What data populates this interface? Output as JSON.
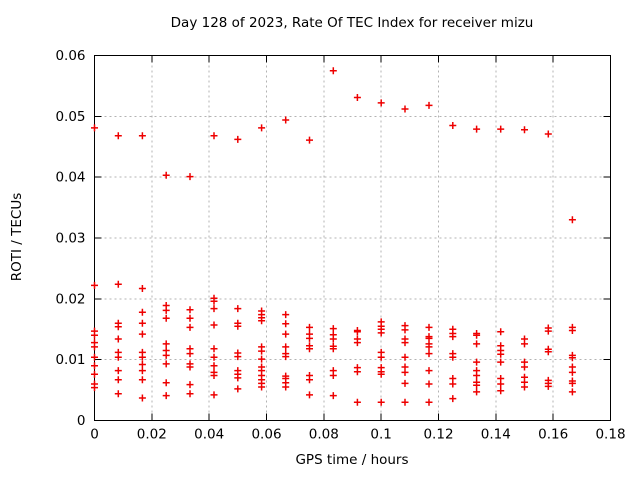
{
  "page": {
    "background": "#ffffff"
  },
  "chart_data": {
    "type": "scatter",
    "title": "Day 128 of 2023, Rate Of TEC Index for receiver mizu",
    "xlabel": "GPS time / hours",
    "ylabel": "ROTI / TECUs",
    "xlim": [
      0,
      0.18
    ],
    "ylim": [
      0,
      0.06
    ],
    "xtick_values": [
      0,
      0.02,
      0.04,
      0.06,
      0.08,
      0.1,
      0.12,
      0.14,
      0.16,
      0.18
    ],
    "xtick_labels": [
      "0",
      "0.02",
      "0.04",
      "0.06",
      "0.08",
      "0.1",
      "0.12",
      "0.14",
      "0.16",
      "0.18"
    ],
    "ytick_values": [
      0,
      0.01,
      0.02,
      0.03,
      0.04,
      0.05,
      0.06
    ],
    "ytick_labels": [
      "0",
      "0.01",
      "0.02",
      "0.03",
      "0.04",
      "0.05",
      "0.06"
    ],
    "grid": true,
    "legend": "none",
    "marker": "plus",
    "colors": {
      "marker": "#ee0000",
      "grid": "#b3b3b3",
      "axis": "#000000",
      "text": "#000000"
    },
    "series": [
      {
        "name": "ROTI",
        "points": [
          [
            0.0,
            0.0481
          ],
          [
            0.0,
            0.0222
          ],
          [
            0.0,
            0.0147
          ],
          [
            0.0,
            0.014
          ],
          [
            0.0,
            0.0128
          ],
          [
            0.0,
            0.0121
          ],
          [
            0.0,
            0.0104
          ],
          [
            0.0,
            0.009
          ],
          [
            0.0,
            0.0076
          ],
          [
            0.0,
            0.006
          ],
          [
            0.0,
            0.0054
          ],
          [
            0.0083,
            0.0468
          ],
          [
            0.0083,
            0.0224
          ],
          [
            0.0083,
            0.016
          ],
          [
            0.0083,
            0.0154
          ],
          [
            0.0083,
            0.0134
          ],
          [
            0.0083,
            0.0112
          ],
          [
            0.0083,
            0.0104
          ],
          [
            0.0083,
            0.0082
          ],
          [
            0.0083,
            0.0067
          ],
          [
            0.0083,
            0.0044
          ],
          [
            0.0167,
            0.0468
          ],
          [
            0.0167,
            0.0217
          ],
          [
            0.0167,
            0.0178
          ],
          [
            0.0167,
            0.016
          ],
          [
            0.0167,
            0.0142
          ],
          [
            0.0167,
            0.0112
          ],
          [
            0.0167,
            0.0104
          ],
          [
            0.0167,
            0.0092
          ],
          [
            0.0167,
            0.0082
          ],
          [
            0.0167,
            0.0067
          ],
          [
            0.0167,
            0.0037
          ],
          [
            0.025,
            0.0403
          ],
          [
            0.025,
            0.0189
          ],
          [
            0.025,
            0.0181
          ],
          [
            0.025,
            0.0168
          ],
          [
            0.025,
            0.0126
          ],
          [
            0.025,
            0.0115
          ],
          [
            0.025,
            0.0107
          ],
          [
            0.025,
            0.0093
          ],
          [
            0.025,
            0.0062
          ],
          [
            0.025,
            0.0041
          ],
          [
            0.0333,
            0.0401
          ],
          [
            0.0333,
            0.0182
          ],
          [
            0.0333,
            0.0168
          ],
          [
            0.0333,
            0.0153
          ],
          [
            0.0333,
            0.0118
          ],
          [
            0.0333,
            0.011
          ],
          [
            0.0333,
            0.0093
          ],
          [
            0.0333,
            0.0088
          ],
          [
            0.0333,
            0.0059
          ],
          [
            0.0333,
            0.0044
          ],
          [
            0.0417,
            0.0468
          ],
          [
            0.0417,
            0.0201
          ],
          [
            0.0417,
            0.0196
          ],
          [
            0.0417,
            0.0184
          ],
          [
            0.0417,
            0.0157
          ],
          [
            0.0417,
            0.0118
          ],
          [
            0.0417,
            0.0104
          ],
          [
            0.0417,
            0.009
          ],
          [
            0.0417,
            0.0079
          ],
          [
            0.0417,
            0.0074
          ],
          [
            0.0417,
            0.0042
          ],
          [
            0.05,
            0.0462
          ],
          [
            0.05,
            0.0184
          ],
          [
            0.05,
            0.016
          ],
          [
            0.05,
            0.0155
          ],
          [
            0.05,
            0.0111
          ],
          [
            0.05,
            0.0105
          ],
          [
            0.05,
            0.0082
          ],
          [
            0.05,
            0.0076
          ],
          [
            0.05,
            0.007
          ],
          [
            0.05,
            0.0052
          ],
          [
            0.0583,
            0.0481
          ],
          [
            0.0583,
            0.018
          ],
          [
            0.0583,
            0.0174
          ],
          [
            0.0583,
            0.0169
          ],
          [
            0.0583,
            0.0164
          ],
          [
            0.0583,
            0.0121
          ],
          [
            0.0583,
            0.0114
          ],
          [
            0.0583,
            0.0101
          ],
          [
            0.0583,
            0.0088
          ],
          [
            0.0583,
            0.0082
          ],
          [
            0.0583,
            0.0074
          ],
          [
            0.0583,
            0.0067
          ],
          [
            0.0583,
            0.0061
          ],
          [
            0.0583,
            0.0055
          ],
          [
            0.0667,
            0.0494
          ],
          [
            0.0667,
            0.0174
          ],
          [
            0.0667,
            0.0159
          ],
          [
            0.0667,
            0.0142
          ],
          [
            0.0667,
            0.0121
          ],
          [
            0.0667,
            0.011
          ],
          [
            0.0667,
            0.0105
          ],
          [
            0.0667,
            0.0073
          ],
          [
            0.0667,
            0.0069
          ],
          [
            0.0667,
            0.0062
          ],
          [
            0.0667,
            0.0055
          ],
          [
            0.075,
            0.0461
          ],
          [
            0.075,
            0.0153
          ],
          [
            0.075,
            0.0142
          ],
          [
            0.075,
            0.0135
          ],
          [
            0.075,
            0.0123
          ],
          [
            0.075,
            0.0118
          ],
          [
            0.075,
            0.0074
          ],
          [
            0.075,
            0.0067
          ],
          [
            0.075,
            0.0042
          ],
          [
            0.0833,
            0.0575
          ],
          [
            0.0833,
            0.0151
          ],
          [
            0.0833,
            0.0141
          ],
          [
            0.0833,
            0.0134
          ],
          [
            0.0833,
            0.0122
          ],
          [
            0.0833,
            0.0118
          ],
          [
            0.0833,
            0.0082
          ],
          [
            0.0833,
            0.0074
          ],
          [
            0.0833,
            0.0041
          ],
          [
            0.0917,
            0.0531
          ],
          [
            0.0917,
            0.0148
          ],
          [
            0.0917,
            0.0146
          ],
          [
            0.0917,
            0.0134
          ],
          [
            0.0917,
            0.0128
          ],
          [
            0.0917,
            0.0087
          ],
          [
            0.0917,
            0.008
          ],
          [
            0.0917,
            0.003
          ],
          [
            0.1,
            0.0522
          ],
          [
            0.1,
            0.0162
          ],
          [
            0.1,
            0.0155
          ],
          [
            0.1,
            0.015
          ],
          [
            0.1,
            0.0144
          ],
          [
            0.1,
            0.0112
          ],
          [
            0.1,
            0.0104
          ],
          [
            0.1,
            0.0087
          ],
          [
            0.1,
            0.008
          ],
          [
            0.1,
            0.0076
          ],
          [
            0.1,
            0.003
          ],
          [
            0.1083,
            0.0512
          ],
          [
            0.1083,
            0.0156
          ],
          [
            0.1083,
            0.0149
          ],
          [
            0.1083,
            0.0134
          ],
          [
            0.1083,
            0.0128
          ],
          [
            0.1083,
            0.0104
          ],
          [
            0.1083,
            0.0088
          ],
          [
            0.1083,
            0.0079
          ],
          [
            0.1083,
            0.0061
          ],
          [
            0.1083,
            0.003
          ],
          [
            0.1167,
            0.0518
          ],
          [
            0.1167,
            0.0153
          ],
          [
            0.1167,
            0.0138
          ],
          [
            0.1167,
            0.0135
          ],
          [
            0.1167,
            0.0126
          ],
          [
            0.1167,
            0.0121
          ],
          [
            0.1167,
            0.011
          ],
          [
            0.1167,
            0.0082
          ],
          [
            0.1167,
            0.006
          ],
          [
            0.1167,
            0.003
          ],
          [
            0.125,
            0.0485
          ],
          [
            0.125,
            0.015
          ],
          [
            0.125,
            0.0143
          ],
          [
            0.125,
            0.0138
          ],
          [
            0.125,
            0.011
          ],
          [
            0.125,
            0.0104
          ],
          [
            0.125,
            0.0069
          ],
          [
            0.125,
            0.006
          ],
          [
            0.125,
            0.0036
          ],
          [
            0.1333,
            0.0479
          ],
          [
            0.1333,
            0.0143
          ],
          [
            0.1333,
            0.014
          ],
          [
            0.1333,
            0.0126
          ],
          [
            0.1333,
            0.0096
          ],
          [
            0.1333,
            0.0082
          ],
          [
            0.1333,
            0.0074
          ],
          [
            0.1333,
            0.0063
          ],
          [
            0.1333,
            0.0058
          ],
          [
            0.1333,
            0.0047
          ],
          [
            0.1417,
            0.0479
          ],
          [
            0.1417,
            0.0146
          ],
          [
            0.1417,
            0.0123
          ],
          [
            0.1417,
            0.0115
          ],
          [
            0.1417,
            0.0109
          ],
          [
            0.1417,
            0.0096
          ],
          [
            0.1417,
            0.0069
          ],
          [
            0.1417,
            0.006
          ],
          [
            0.1417,
            0.0049
          ],
          [
            0.15,
            0.0478
          ],
          [
            0.15,
            0.0134
          ],
          [
            0.15,
            0.0126
          ],
          [
            0.15,
            0.0096
          ],
          [
            0.15,
            0.0088
          ],
          [
            0.15,
            0.0071
          ],
          [
            0.15,
            0.0063
          ],
          [
            0.15,
            0.0055
          ],
          [
            0.1583,
            0.0471
          ],
          [
            0.1583,
            0.0152
          ],
          [
            0.1583,
            0.0147
          ],
          [
            0.1583,
            0.0117
          ],
          [
            0.1583,
            0.0113
          ],
          [
            0.1583,
            0.0066
          ],
          [
            0.1583,
            0.0061
          ],
          [
            0.1583,
            0.0056
          ],
          [
            0.1667,
            0.033
          ],
          [
            0.1667,
            0.0153
          ],
          [
            0.1667,
            0.0148
          ],
          [
            0.1667,
            0.0107
          ],
          [
            0.1667,
            0.0103
          ],
          [
            0.1667,
            0.0088
          ],
          [
            0.1667,
            0.0079
          ],
          [
            0.1667,
            0.0065
          ],
          [
            0.1667,
            0.0061
          ],
          [
            0.1667,
            0.0047
          ]
        ]
      }
    ]
  }
}
